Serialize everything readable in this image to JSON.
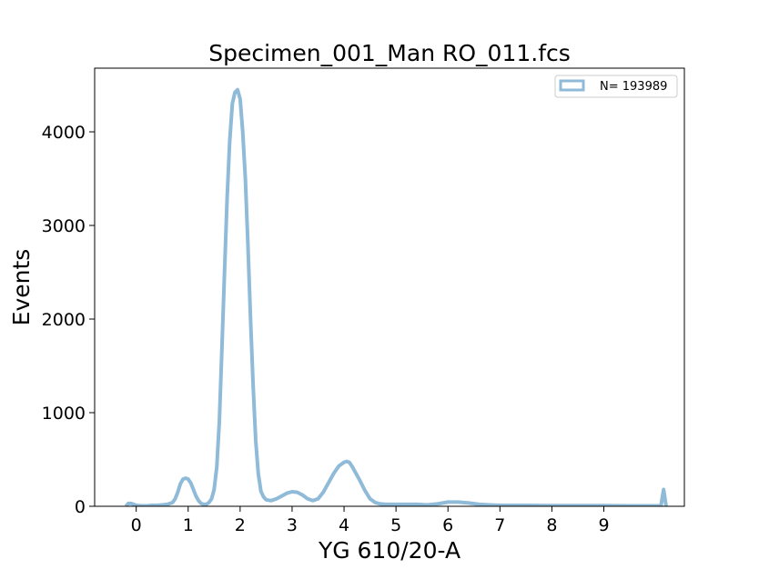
{
  "chart_data": {
    "type": "histogram",
    "title": "Specimen_001_Man RO_011.fcs",
    "xlabel": "YG 610/20-A",
    "ylabel": "Events",
    "xlim": [
      -0.8,
      10.55
    ],
    "ylim": [
      0,
      4680
    ],
    "xticks": [
      0,
      1,
      2,
      3,
      4,
      5,
      6,
      7,
      8,
      9
    ],
    "yticks": [
      0,
      1000,
      2000,
      3000,
      4000
    ],
    "legend": {
      "label": "N= 193989",
      "position": "top-right"
    },
    "series_color": "#8fbad8",
    "grid": false,
    "series": [
      {
        "name": "N= 193989",
        "x": [
          -0.2,
          -0.15,
          -0.1,
          -0.05,
          0.0,
          0.1,
          0.2,
          0.3,
          0.4,
          0.5,
          0.6,
          0.7,
          0.75,
          0.8,
          0.85,
          0.9,
          0.95,
          1.0,
          1.05,
          1.1,
          1.15,
          1.2,
          1.25,
          1.3,
          1.35,
          1.4,
          1.45,
          1.5,
          1.55,
          1.6,
          1.65,
          1.7,
          1.75,
          1.8,
          1.85,
          1.9,
          1.95,
          2.0,
          2.05,
          2.1,
          2.15,
          2.2,
          2.25,
          2.3,
          2.35,
          2.4,
          2.45,
          2.5,
          2.6,
          2.7,
          2.8,
          2.9,
          3.0,
          3.1,
          3.2,
          3.3,
          3.4,
          3.5,
          3.6,
          3.7,
          3.8,
          3.9,
          4.0,
          4.05,
          4.1,
          4.15,
          4.2,
          4.3,
          4.4,
          4.5,
          4.6,
          4.7,
          4.8,
          5.0,
          5.2,
          5.4,
          5.6,
          5.8,
          6.0,
          6.2,
          6.4,
          6.6,
          6.8,
          7.0,
          7.5,
          8.0,
          8.5,
          9.0,
          9.5,
          10.0,
          10.1,
          10.15,
          10.2
        ],
        "values": [
          0,
          30,
          30,
          20,
          10,
          5,
          5,
          10,
          10,
          15,
          20,
          40,
          80,
          150,
          240,
          290,
          300,
          290,
          250,
          180,
          110,
          60,
          30,
          20,
          20,
          40,
          80,
          180,
          420,
          900,
          1700,
          2500,
          3300,
          3900,
          4300,
          4420,
          4450,
          4350,
          4000,
          3500,
          2800,
          2000,
          1300,
          700,
          350,
          160,
          100,
          70,
          60,
          80,
          110,
          140,
          155,
          150,
          120,
          80,
          60,
          80,
          150,
          250,
          350,
          430,
          470,
          480,
          470,
          430,
          380,
          280,
          170,
          80,
          40,
          25,
          20,
          20,
          20,
          20,
          15,
          25,
          45,
          45,
          35,
          20,
          15,
          10,
          10,
          8,
          8,
          8,
          5,
          5,
          5,
          180,
          0
        ]
      }
    ]
  }
}
